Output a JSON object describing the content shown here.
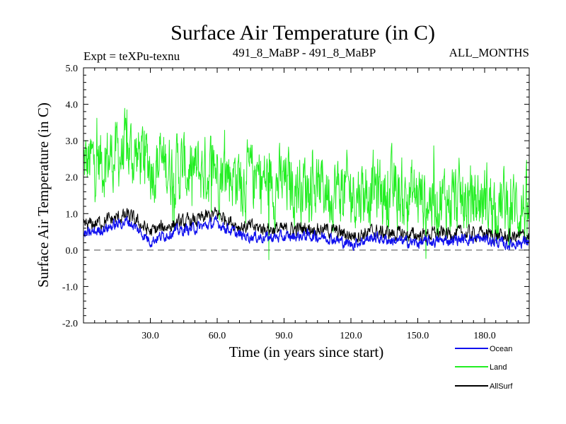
{
  "chart_data": {
    "type": "line",
    "title": "Surface Air Temperature (in C)",
    "expt_label": "Expt = teXPu-texnu",
    "run_label": "491_8_MaBP - 491_8_MaBP",
    "period_label": "ALL_MONTHS",
    "xlabel": "Time (in years since start)",
    "ylabel": "Surface Air Temperature (in C)",
    "xlim": [
      0,
      200
    ],
    "ylim": [
      -2.0,
      5.0
    ],
    "x_ticks": [
      30,
      60,
      90,
      120,
      150,
      180
    ],
    "x_tick_labels": [
      "30.0",
      "60.0",
      "90.0",
      "120.0",
      "150.0",
      "180.0"
    ],
    "y_ticks": [
      -2.0,
      -1.0,
      0.0,
      1.0,
      2.0,
      3.0,
      4.0,
      5.0
    ],
    "y_tick_labels": [
      "-2.0",
      "-1.0",
      "0.0",
      "1.0",
      "2.0",
      "3.0",
      "4.0",
      "5.0"
    ],
    "reference_line": 0.0,
    "colors": {
      "Ocean": "#1010ee",
      "Land": "#22ee22",
      "AllSurf": "#000000",
      "reference": "#888888"
    },
    "series": [
      {
        "name": "Land",
        "years": [
          0,
          10,
          20,
          30,
          40,
          50,
          60,
          70,
          80,
          90,
          100,
          110,
          120,
          130,
          140,
          150,
          160,
          170,
          180,
          190,
          200
        ],
        "values": [
          2.3,
          2.5,
          2.7,
          2.4,
          2.3,
          2.1,
          2.3,
          2.0,
          1.9,
          1.8,
          1.8,
          1.7,
          1.6,
          1.7,
          1.5,
          1.5,
          1.4,
          1.3,
          1.4,
          1.2,
          1.2
        ]
      },
      {
        "name": "AllSurf",
        "years": [
          0,
          10,
          20,
          30,
          40,
          50,
          60,
          70,
          80,
          90,
          100,
          110,
          120,
          130,
          140,
          150,
          160,
          170,
          180,
          190,
          200
        ],
        "values": [
          0.65,
          0.8,
          0.95,
          0.5,
          0.7,
          0.8,
          1.0,
          0.65,
          0.6,
          0.55,
          0.6,
          0.55,
          0.4,
          0.5,
          0.45,
          0.4,
          0.45,
          0.45,
          0.45,
          0.35,
          0.4
        ]
      },
      {
        "name": "Ocean",
        "years": [
          0,
          10,
          20,
          30,
          40,
          50,
          60,
          70,
          80,
          90,
          100,
          110,
          120,
          130,
          140,
          150,
          160,
          170,
          180,
          190,
          200
        ],
        "values": [
          0.4,
          0.6,
          0.8,
          0.25,
          0.5,
          0.6,
          0.75,
          0.4,
          0.35,
          0.35,
          0.4,
          0.35,
          0.15,
          0.35,
          0.25,
          0.2,
          0.25,
          0.3,
          0.3,
          0.15,
          0.25
        ]
      }
    ],
    "legend": [
      {
        "name": "Ocean",
        "label": "Ocean"
      },
      {
        "name": "Land",
        "label": "Land"
      },
      {
        "name": "AllSurf",
        "label": "AllSurf"
      }
    ]
  }
}
